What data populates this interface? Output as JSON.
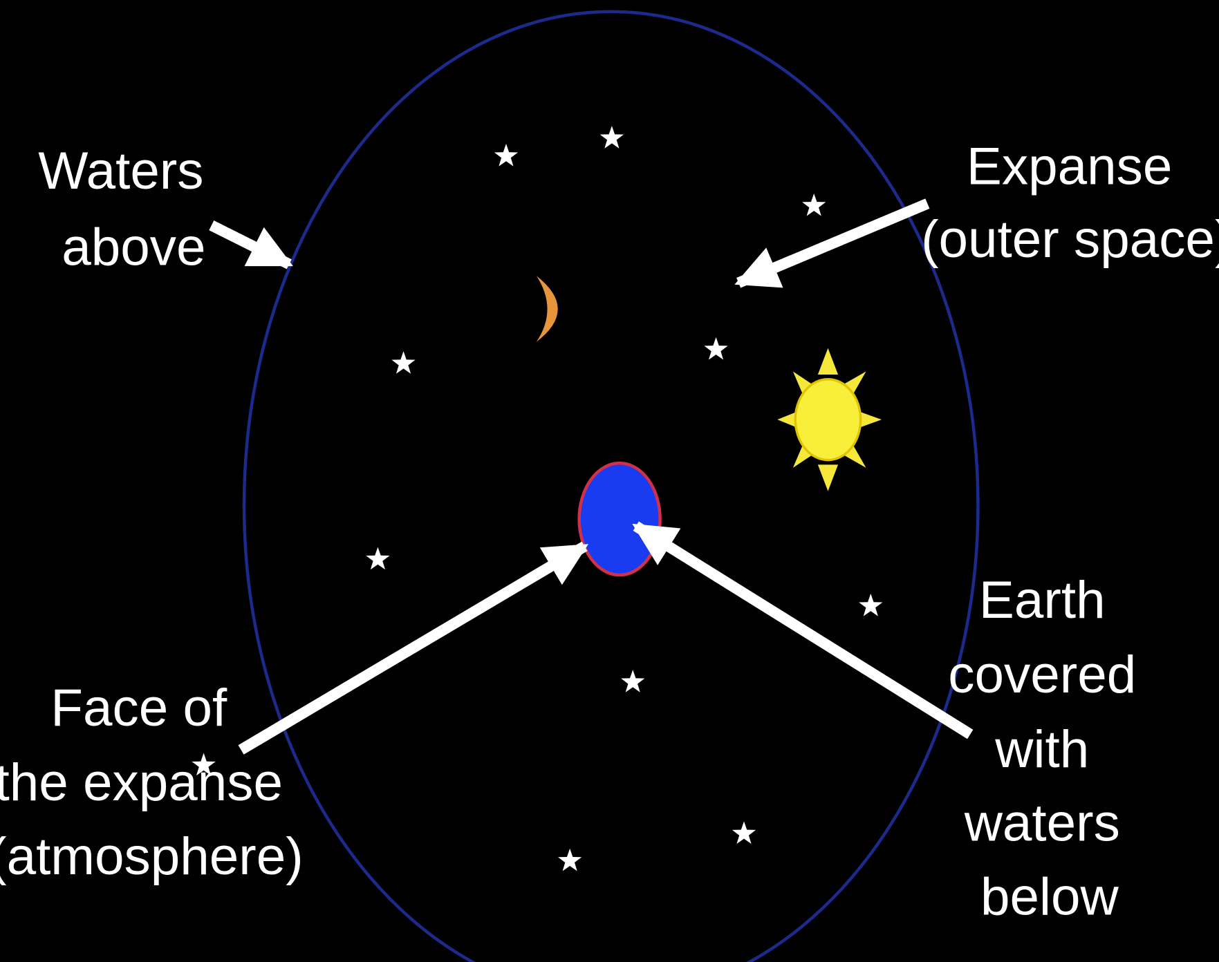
{
  "labels": {
    "waters_above": [
      "Waters",
      "above"
    ],
    "expanse": [
      "Expanse",
      "(outer space)"
    ],
    "earth": [
      "Earth",
      "covered",
      "with",
      "waters",
      "below"
    ],
    "face": [
      "Face of",
      "the expanse",
      "(atmosphere)"
    ]
  }
}
